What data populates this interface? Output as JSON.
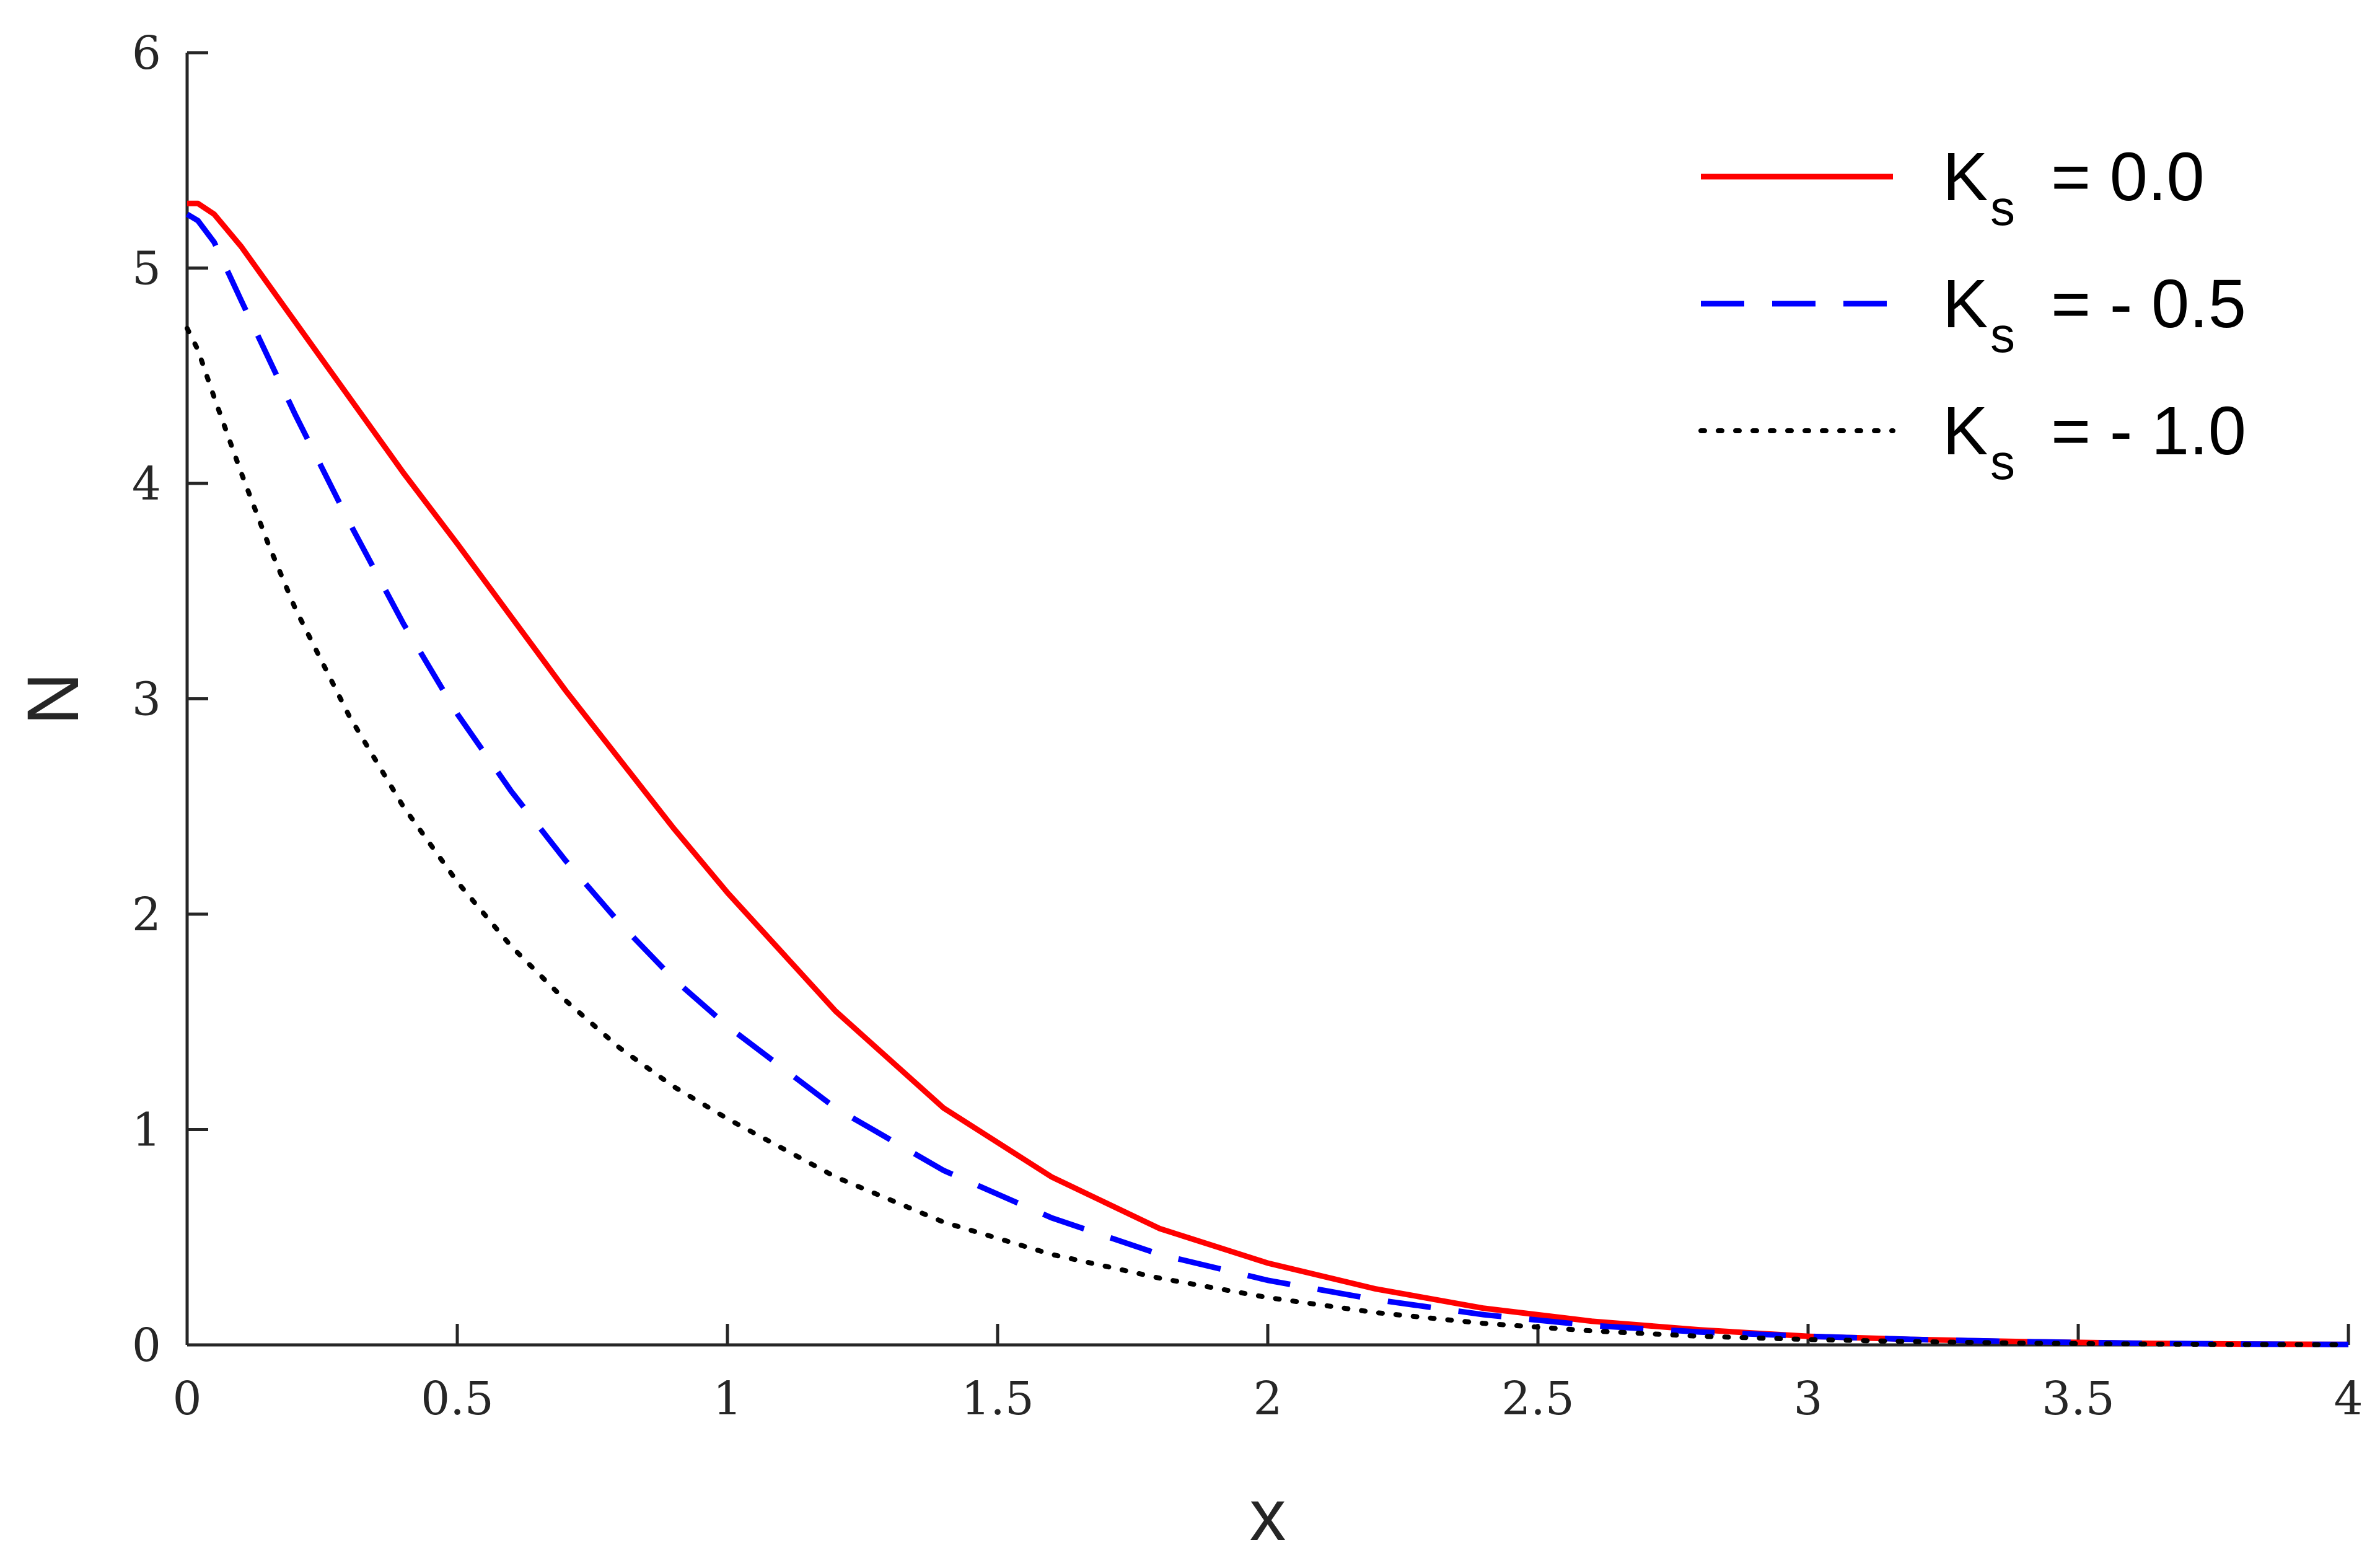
{
  "chart_data": {
    "type": "line",
    "title": "",
    "xlabel": "x",
    "ylabel": "N",
    "xlim": [
      0,
      4
    ],
    "ylim": [
      0,
      6
    ],
    "xticks": [
      0,
      0.5,
      1,
      1.5,
      2,
      2.5,
      3,
      3.5,
      4
    ],
    "xtick_labels": [
      "0",
      "0.5",
      "1",
      "1.5",
      "2",
      "2.5",
      "3",
      "3.5",
      "4"
    ],
    "yticks": [
      0,
      1,
      2,
      3,
      4,
      5,
      6
    ],
    "ytick_labels": [
      "0",
      "1",
      "2",
      "3",
      "4",
      "5",
      "6"
    ],
    "grid": false,
    "legend_position": "top-right",
    "series": [
      {
        "name": "K_s = 0.0",
        "legend_main": "K",
        "legend_sub": "s",
        "legend_value": "=  0.0",
        "color": "#ff0000",
        "style": "solid",
        "x": [
          0,
          0.02,
          0.05,
          0.1,
          0.2,
          0.3,
          0.4,
          0.5,
          0.6,
          0.7,
          0.8,
          0.9,
          1.0,
          1.2,
          1.4,
          1.6,
          1.8,
          2.0,
          2.2,
          2.4,
          2.6,
          2.8,
          3.0,
          3.2,
          3.4,
          3.6,
          3.8,
          4.0
        ],
        "y": [
          5.3,
          5.3,
          5.25,
          5.1,
          4.75,
          4.4,
          4.05,
          3.72,
          3.38,
          3.04,
          2.72,
          2.4,
          2.1,
          1.55,
          1.1,
          0.78,
          0.54,
          0.38,
          0.26,
          0.17,
          0.11,
          0.07,
          0.04,
          0.025,
          0.015,
          0.008,
          0.004,
          0.002
        ]
      },
      {
        "name": "K_s = -0.5",
        "legend_main": "K",
        "legend_sub": "s",
        "legend_value": "= - 0.5",
        "color": "#0000ff",
        "style": "dashed",
        "x": [
          0,
          0.02,
          0.05,
          0.1,
          0.2,
          0.3,
          0.4,
          0.5,
          0.6,
          0.7,
          0.8,
          0.9,
          1.0,
          1.2,
          1.4,
          1.6,
          1.8,
          2.0,
          2.2,
          2.4,
          2.6,
          2.8,
          3.0,
          3.2,
          3.4,
          3.6,
          3.8,
          4.0
        ],
        "y": [
          5.25,
          5.22,
          5.12,
          4.85,
          4.32,
          3.82,
          3.35,
          2.93,
          2.57,
          2.25,
          1.96,
          1.7,
          1.48,
          1.1,
          0.81,
          0.59,
          0.42,
          0.3,
          0.21,
          0.14,
          0.09,
          0.06,
          0.04,
          0.025,
          0.015,
          0.008,
          0.004,
          0.002
        ]
      },
      {
        "name": "K_s = -1.0",
        "legend_main": "K",
        "legend_sub": "s",
        "legend_value": "= - 1.0",
        "color": "#000000",
        "style": "dotted",
        "x": [
          0,
          0.02,
          0.05,
          0.1,
          0.15,
          0.2,
          0.3,
          0.4,
          0.5,
          0.6,
          0.7,
          0.8,
          0.9,
          1.0,
          1.2,
          1.4,
          1.6,
          1.8,
          2.0,
          2.2,
          2.4,
          2.6,
          2.8,
          3.0,
          3.2,
          3.4,
          3.6,
          3.8,
          4.0
        ],
        "y": [
          4.72,
          4.62,
          4.4,
          4.05,
          3.72,
          3.42,
          2.92,
          2.5,
          2.15,
          1.85,
          1.6,
          1.38,
          1.2,
          1.05,
          0.78,
          0.57,
          0.42,
          0.31,
          0.22,
          0.15,
          0.1,
          0.065,
          0.04,
          0.025,
          0.015,
          0.008,
          0.004,
          0.002,
          0.001
        ]
      }
    ]
  }
}
